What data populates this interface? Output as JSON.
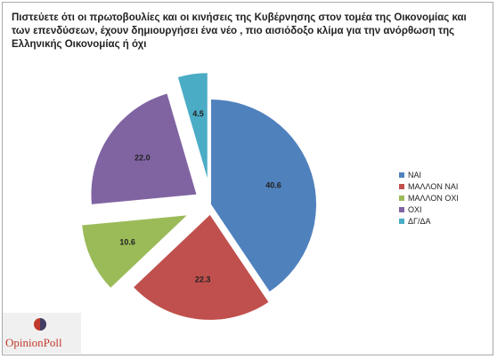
{
  "chart_data": {
    "type": "pie",
    "title": "Πιστεύετε ότι οι πρωτοβουλίες και οι κινήσεις της Κυβέρνησης στον τομέα της Οικονομίας και των επενδύσεων, έχουν δημιουργήσει ένα νέο , πιο αισιόδοξο κλίμα για την ανόρθωση της Ελληνικής Οικονομίας ή όχι",
    "labels": [
      "ΝΑΙ",
      "ΜΑΛΛΟΝ ΝΑΙ",
      "ΜΑΛΛΟΝ ΟΧΙ",
      "ΟΧΙ",
      "ΔΓ/ΔΑ"
    ],
    "values": [
      40.6,
      22.3,
      10.6,
      22.0,
      4.5
    ],
    "colors": [
      "#4f81bd",
      "#c0504d",
      "#9bbb59",
      "#8064a2",
      "#4bacc6"
    ],
    "legend_position": "right",
    "exploded": true
  },
  "logo": {
    "text": "OpinionPoll",
    "colors": [
      "#c0392b",
      "#2c3e70"
    ]
  }
}
